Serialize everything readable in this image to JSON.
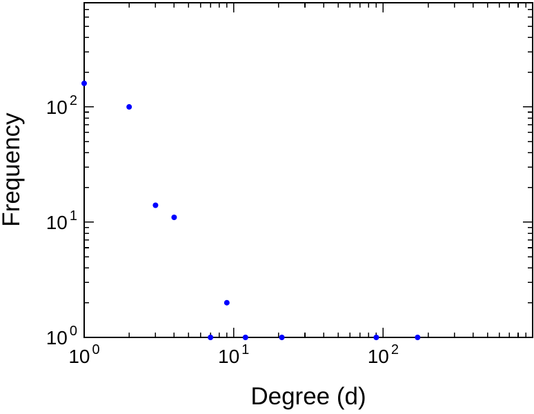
{
  "figure": {
    "background": "#ffffff",
    "axis_color": "#000000"
  },
  "chart_data": {
    "type": "scatter",
    "title": "",
    "xlabel": "Degree (d)",
    "ylabel": "Frequency",
    "x_scale": "log",
    "y_scale": "log",
    "xlim": [
      1,
      1000
    ],
    "ylim": [
      1,
      800
    ],
    "grid": false,
    "tick_label_base": "10",
    "x_tick_exponents": [
      0,
      1,
      2
    ],
    "y_tick_exponents": [
      0,
      1,
      2
    ],
    "marker": {
      "shape": "circle",
      "color": "#0000ff",
      "size": 4
    },
    "x": [
      1,
      2,
      3,
      4,
      7,
      9,
      12,
      21,
      90,
      170
    ],
    "y": [
      160,
      100,
      14,
      11,
      1,
      2,
      1,
      1,
      1,
      1
    ]
  }
}
